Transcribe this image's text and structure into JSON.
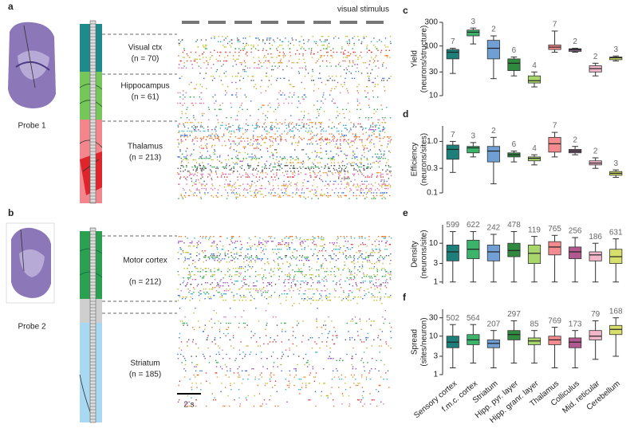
{
  "figure": {
    "panel_a": {
      "label": "a",
      "probe": "Probe 1",
      "stimulus": "visual stimulus",
      "regions": [
        {
          "name": "Visual ctx",
          "n": "(n = 70)"
        },
        {
          "name": "Hippocampus",
          "n": "(n = 61)"
        },
        {
          "name": "Thalamus",
          "n": "(n = 213)"
        }
      ]
    },
    "panel_b": {
      "label": "b",
      "probe": "Probe 2",
      "scale": "2 s",
      "regions": [
        {
          "name": "Motor cortex",
          "n": "(n = 212)"
        },
        {
          "name": "Striatum",
          "n": "(n = 185)"
        }
      ]
    }
  },
  "chart_data": [
    {
      "type": "box",
      "panel": "c",
      "ylabel": [
        "Yield",
        "(neurons/structure)"
      ],
      "log": true,
      "ylim": [
        10,
        300
      ],
      "yticks": [
        10,
        30,
        100,
        300
      ],
      "colors": [
        "#1d7f7a",
        "#3bb36a",
        "#6f9fd3",
        "#2f8a3f",
        "#a8d56c",
        "#f28a8e",
        "#7a5a78",
        "#f2b6c9",
        "#c8d85e"
      ],
      "n": [
        7,
        3,
        2,
        6,
        4,
        7,
        2,
        2,
        3
      ],
      "min": [
        28,
        110,
        22,
        25,
        15,
        75,
        75,
        25,
        50
      ],
      "q1": [
        55,
        160,
        55,
        32,
        18,
        85,
        78,
        30,
        53
      ],
      "median": [
        75,
        190,
        90,
        45,
        20,
        95,
        85,
        35,
        58
      ],
      "q3": [
        85,
        210,
        130,
        55,
        25,
        105,
        88,
        40,
        60
      ],
      "max": [
        90,
        230,
        160,
        60,
        30,
        200,
        90,
        45,
        63
      ]
    },
    {
      "type": "box",
      "panel": "d",
      "ylabel": [
        "Efficiency",
        "(neurons/sites)"
      ],
      "log": true,
      "ylim": [
        0.1,
        2
      ],
      "yticks": [
        0.1,
        0.3,
        {
          "value": 1,
          "label": "1.0"
        }
      ],
      "colors": [
        "#1d7f7a",
        "#3bb36a",
        "#6f9fd3",
        "#2f8a3f",
        "#a8d56c",
        "#f28a8e",
        "#7a5a78",
        "#f2b6c9",
        "#c8d85e"
      ],
      "n": [
        7,
        3,
        2,
        6,
        4,
        7,
        2,
        2,
        3
      ],
      "min": [
        0.25,
        0.5,
        0.15,
        0.4,
        0.35,
        0.5,
        0.55,
        0.3,
        0.2
      ],
      "q1": [
        0.45,
        0.6,
        0.4,
        0.5,
        0.42,
        0.62,
        0.6,
        0.35,
        0.22
      ],
      "median": [
        0.7,
        0.75,
        0.65,
        0.55,
        0.47,
        0.9,
        0.65,
        0.38,
        0.24
      ],
      "q3": [
        0.85,
        0.8,
        0.8,
        0.6,
        0.5,
        1.2,
        0.7,
        0.42,
        0.26
      ],
      "max": [
        1,
        0.95,
        1.2,
        0.65,
        0.55,
        1.5,
        0.8,
        0.48,
        0.28
      ]
    },
    {
      "type": "box",
      "panel": "e",
      "ylabel": [
        "Density",
        "(neurons/site)"
      ],
      "log": true,
      "ylim": [
        0.9,
        30
      ],
      "yticks": [
        1,
        3,
        10
      ],
      "colors": [
        "#1d7f7a",
        "#3bb36a",
        "#6f9fd3",
        "#2f8a3f",
        "#a8d56c",
        "#f28a8e",
        "#b0588f",
        "#f2b6c9",
        "#d6e06a"
      ],
      "n": [
        599,
        622,
        242,
        478,
        119,
        765,
        256,
        186,
        631
      ],
      "min": [
        1,
        1,
        1,
        1,
        1,
        1,
        1,
        1,
        1
      ],
      "q1": [
        3.5,
        4,
        3.5,
        4.5,
        3,
        5,
        4,
        3.5,
        3
      ],
      "median": [
        6,
        7,
        6,
        6.5,
        5.5,
        8,
        6,
        5,
        4.5
      ],
      "q3": [
        9,
        12,
        9,
        10,
        9,
        11,
        8,
        6,
        7
      ],
      "max": [
        20,
        20,
        17,
        20,
        15,
        16,
        14,
        10,
        13
      ]
    },
    {
      "type": "box",
      "panel": "f",
      "ylabel": [
        "Spread",
        "(sites/neuron)"
      ],
      "log": true,
      "ylim": [
        1,
        50
      ],
      "yticks": [
        1,
        3,
        10,
        30
      ],
      "colors": [
        "#1d7f7a",
        "#3bb36a",
        "#6f9fd3",
        "#2f8a3f",
        "#a8d56c",
        "#f28a8e",
        "#b0588f",
        "#f2b6c9",
        "#d6e06a"
      ],
      "categories": [
        "Sensory cortex",
        "f.m.c. cortex",
        "Striatum",
        "Hipp. pyr. layer",
        "Hipp. granr. layer",
        "Thalamus",
        "Colliculus",
        "Mid. reticular",
        "Cerebellum"
      ],
      "n": [
        502,
        564,
        207,
        297,
        85,
        769,
        173,
        79,
        168
      ],
      "min": [
        1.5,
        2,
        1.5,
        2,
        2,
        1.5,
        1.5,
        2.5,
        3
      ],
      "q1": [
        5,
        6,
        5,
        8,
        6,
        6,
        5,
        8,
        11
      ],
      "median": [
        7,
        8,
        6.5,
        11,
        7.5,
        8,
        7,
        10,
        15
      ],
      "q3": [
        10,
        11,
        8,
        14,
        9,
        10,
        9,
        14,
        19
      ],
      "max": [
        20,
        20,
        14,
        25,
        14,
        17,
        14,
        25,
        30
      ]
    }
  ]
}
